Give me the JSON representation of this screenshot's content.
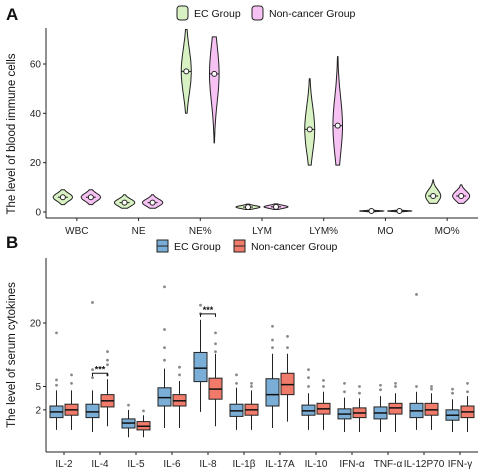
{
  "colors": {
    "ec_violin": "#d9f2c4",
    "noncancer_violin": "#f6c2f4",
    "ec_box": "#7aaed6",
    "noncancer_box": "#f07b6a"
  },
  "chart_data": [
    {
      "panel": "A",
      "type": "violin",
      "ylabel": "The level of blood immune cells",
      "ylim": [
        0,
        75
      ],
      "yticks": [
        0,
        20,
        40,
        60
      ],
      "legend": [
        "EC Group",
        "Non-cancer Group"
      ],
      "legend_position": "top",
      "categories": [
        "WBC",
        "NE",
        "NE%",
        "LYM",
        "LYM%",
        "MO",
        "MO%"
      ],
      "series": [
        {
          "name": "EC Group",
          "median": [
            6,
            3.8,
            57,
            2,
            33.5,
            0.4,
            6.5
          ],
          "min": [
            3,
            1.5,
            40,
            1,
            19,
            0.1,
            3.5
          ],
          "max": [
            9,
            7,
            74,
            3.2,
            54,
            0.8,
            13
          ]
        },
        {
          "name": "Non-cancer Group",
          "median": [
            6,
            3.8,
            56,
            2.1,
            35,
            0.4,
            6.5
          ],
          "min": [
            3,
            1.5,
            28,
            1,
            19,
            0.1,
            3.5
          ],
          "max": [
            9,
            7,
            71,
            3.3,
            63,
            0.8,
            11
          ]
        }
      ]
    },
    {
      "panel": "B",
      "type": "box",
      "ylabel": "The level of serum cytokines",
      "yticks": [
        2,
        5,
        20
      ],
      "scale": "sqrt",
      "ylim": [
        0,
        35
      ],
      "legend": [
        "EC Group",
        "Non-cancer Group"
      ],
      "legend_position": "top",
      "categories": [
        "IL-2",
        "IL-4",
        "IL-5",
        "IL-6",
        "IL-8",
        "IL-1β",
        "IL-17A",
        "IL-10",
        "IFN-α",
        "TNF-α",
        "IL-12P70",
        "IFN-γ"
      ],
      "significance": [
        {
          "category": "IL-4",
          "label": "***"
        },
        {
          "category": "IL-8",
          "label": "***"
        }
      ],
      "series": [
        {
          "name": "EC Group",
          "q1": [
            1.3,
            1.3,
            0.6,
            2.4,
            5.8,
            1.4,
            2.4,
            1.5,
            1.2,
            1.2,
            1.3,
            1.1
          ],
          "median": [
            1.8,
            1.8,
            0.9,
            3.4,
            8.3,
            1.9,
            3.8,
            1.9,
            1.6,
            1.7,
            1.9,
            1.5
          ],
          "q3": [
            2.4,
            2.6,
            1.2,
            4.8,
            11.8,
            2.6,
            6.3,
            2.5,
            2.1,
            2.3,
            2.7,
            2.0
          ],
          "lower_whisker": [
            0.5,
            0.4,
            0.2,
            0.6,
            1.8,
            0.5,
            0.6,
            0.5,
            0.4,
            0.4,
            0.5,
            0.4
          ],
          "upper_whisker": [
            4.4,
            4.4,
            2.0,
            8.2,
            21.0,
            4.8,
            11.5,
            4.0,
            3.4,
            3.6,
            4.2,
            3.2
          ],
          "outliers": [
            [
              5.2,
              6.1,
              17
            ],
            [
              6.5,
              8,
              27
            ],
            [
              2.5
            ],
            [
              10,
              13,
              18,
              33
            ],
            [
              23,
              26
            ],
            [
              5.5,
              7
            ],
            [
              13,
              15,
              19
            ],
            [
              5,
              6.5,
              8
            ],
            [
              4.2,
              5.5
            ],
            [
              4.5,
              5.2
            ],
            [
              5,
              30
            ],
            [
              4,
              4.6
            ]
          ]
        },
        {
          "name": "Non-cancer Group",
          "q1": [
            1.5,
            2.3,
            0.5,
            2.4,
            3.2,
            1.5,
            3.8,
            1.6,
            1.3,
            1.6,
            1.5,
            1.3
          ],
          "median": [
            2.0,
            3.0,
            0.7,
            3.0,
            4.6,
            2.0,
            5.3,
            2.1,
            1.7,
            2.2,
            2.0,
            1.8
          ],
          "q3": [
            2.6,
            3.8,
            1.0,
            3.8,
            6.4,
            2.6,
            7.3,
            2.7,
            2.2,
            2.7,
            2.7,
            2.4
          ],
          "lower_whisker": [
            0.5,
            0.7,
            0.2,
            0.6,
            0.7,
            0.5,
            1.0,
            0.5,
            0.4,
            0.4,
            0.5,
            0.4
          ],
          "upper_whisker": [
            4.4,
            6.2,
            1.5,
            5.9,
            11.5,
            4.4,
            11.5,
            4.2,
            3.3,
            4.0,
            4.0,
            3.6
          ],
          "outliers": [
            [
              5.5,
              7
            ],
            [
              7,
              9,
              10,
              12
            ],
            [
              1.9
            ],
            [
              7,
              8.5
            ],
            [
              12,
              14,
              17
            ],
            [
              5,
              5.5
            ],
            [
              13,
              16
            ],
            [
              5,
              6
            ],
            [
              4,
              5
            ],
            [
              5,
              5.5
            ],
            [
              4.6,
              5
            ],
            [
              4.2,
              5.5
            ]
          ]
        }
      ]
    }
  ]
}
